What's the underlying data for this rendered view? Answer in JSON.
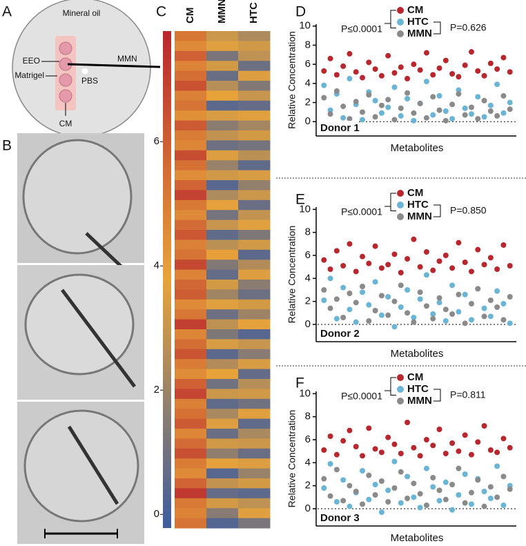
{
  "panel_labels": [
    "A",
    "B",
    "C",
    "D",
    "E",
    "F"
  ],
  "diagram": {
    "title": "Mineral oil",
    "labels": [
      "EEO",
      "Matrigel",
      "PBS",
      "CM",
      "MMN"
    ]
  },
  "chart_data": [
    {
      "type": "heatmap",
      "columns": [
        "CM",
        "MMN",
        "HTC"
      ],
      "colormap": [
        "#3d5c9e",
        "#e8a33a",
        "#b8272e"
      ],
      "ylim": [
        -0.22,
        7.78
      ],
      "yticks": [
        0,
        2,
        4,
        6
      ],
      "values": [
        [
          5.2,
          3.1,
          2.4
        ],
        [
          4.6,
          3.6,
          3.2
        ],
        [
          5.9,
          1.2,
          2.8
        ],
        [
          4.8,
          3.3,
          0.9
        ],
        [
          5.5,
          0.8,
          3.5
        ],
        [
          6.4,
          2.6,
          1.4
        ],
        [
          4.9,
          3.8,
          3.0
        ],
        [
          5.3,
          0.5,
          0.7
        ],
        [
          4.4,
          3.4,
          3.6
        ],
        [
          6.1,
          1.6,
          2.2
        ],
        [
          5.0,
          2.9,
          3.3
        ],
        [
          4.7,
          0.9,
          1.1
        ],
        [
          6.6,
          3.5,
          2.7
        ],
        [
          5.4,
          1.9,
          0.6
        ],
        [
          4.5,
          3.2,
          3.4
        ],
        [
          5.8,
          0.4,
          1.8
        ],
        [
          6.9,
          2.4,
          3.1
        ],
        [
          5.1,
          3.7,
          0.8
        ],
        [
          4.6,
          1.1,
          2.9
        ],
        [
          5.6,
          3.0,
          3.6
        ],
        [
          6.2,
          0.6,
          1.3
        ],
        [
          4.9,
          2.7,
          3.2
        ],
        [
          5.3,
          3.9,
          0.5
        ],
        [
          6.7,
          1.4,
          2.5
        ],
        [
          4.8,
          0.7,
          3.5
        ],
        [
          5.7,
          3.3,
          1.6
        ],
        [
          6.0,
          2.1,
          0.9
        ],
        [
          4.6,
          3.6,
          3.3
        ],
        [
          5.2,
          0.9,
          2.0
        ],
        [
          7.0,
          2.8,
          3.7
        ],
        [
          4.7,
          1.3,
          0.4
        ],
        [
          5.5,
          3.4,
          3.0
        ],
        [
          6.3,
          0.5,
          1.5
        ],
        [
          5.0,
          2.5,
          3.4
        ],
        [
          4.5,
          3.8,
          0.7
        ],
        [
          5.9,
          1.0,
          2.6
        ],
        [
          6.8,
          3.1,
          3.2
        ],
        [
          4.9,
          0.6,
          1.0
        ],
        [
          5.4,
          2.3,
          3.6
        ],
        [
          6.1,
          3.5,
          0.6
        ],
        [
          4.7,
          0.8,
          2.3
        ],
        [
          5.6,
          3.2,
          3.1
        ],
        [
          6.5,
          1.7,
          0.8
        ],
        [
          5.0,
          3.7,
          3.5
        ],
        [
          4.6,
          0.4,
          1.9
        ],
        [
          5.8,
          2.9,
          3.3
        ],
        [
          7.2,
          0.7,
          0.5
        ],
        [
          5.1,
          3.3,
          2.8
        ],
        [
          4.8,
          1.5,
          3.6
        ],
        [
          5.3,
          0.3,
          1.2
        ]
      ]
    },
    {
      "type": "scatter",
      "label": "Donor 1",
      "xlabel": "Metabolites",
      "ylabel": "Relative Concentration",
      "annotations": [
        "P≤0.0001",
        "P=0.626"
      ],
      "ylim": [
        -1.5,
        10.2
      ],
      "yticks": [
        0,
        2,
        4,
        6,
        8,
        10
      ],
      "xlim": [
        0,
        31
      ],
      "x": [
        1,
        2,
        3,
        4,
        5,
        6,
        7,
        8,
        9,
        10,
        11,
        12,
        13,
        14,
        15,
        16,
        17,
        18,
        19,
        20,
        21,
        22,
        23,
        24,
        25,
        26,
        27,
        28,
        29,
        30
      ],
      "series": [
        {
          "name": "CM",
          "color": "#b8272e",
          "values": [
            5.3,
            6.6,
            4.9,
            5.8,
            7.1,
            5.2,
            4.6,
            6.2,
            5.5,
            4.8,
            6.9,
            5.1,
            5.7,
            4.5,
            6.0,
            5.4,
            7.2,
            4.9,
            5.6,
            6.4,
            5.0,
            4.7,
            5.9,
            7.3,
            5.3,
            4.8,
            6.1,
            5.5,
            6.7,
            5.2
          ]
        },
        {
          "name": "HTC",
          "color": "#6ab4d6",
          "values": [
            3.8,
            1.2,
            2.9,
            0.4,
            4.5,
            1.8,
            0.2,
            3.1,
            2.2,
            0.9,
            1.5,
            3.6,
            0.6,
            2.4,
            0.1,
            1.9,
            4.2,
            0.7,
            2.7,
            1.1,
            0.3,
            3.3,
            1.4,
            0.8,
            2.6,
            0.5,
            1.7,
            3.9,
            0.9,
            2.0
          ]
        },
        {
          "name": "MMN",
          "color": "#8a8a8a",
          "values": [
            2.5,
            0.8,
            3.2,
            1.6,
            0.3,
            2.1,
            1.0,
            2.8,
            0.5,
            1.7,
            2.3,
            0.2,
            1.4,
            3.0,
            0.9,
            1.9,
            0.4,
            2.6,
            1.2,
            0.1,
            1.8,
            2.9,
            0.7,
            1.5,
            0.3,
            2.2,
            1.1,
            0.6,
            2.7,
            1.3
          ]
        }
      ]
    },
    {
      "type": "scatter",
      "label": "Donor 2",
      "xlabel": "Metabolites",
      "ylabel": "Relative Concentration",
      "annotations": [
        "P≤0.0001",
        "P=0.850"
      ],
      "ylim": [
        -1.5,
        10.2
      ],
      "yticks": [
        0,
        2,
        4,
        6,
        8,
        10
      ],
      "xlim": [
        0,
        31
      ],
      "x": [
        1,
        2,
        3,
        4,
        5,
        6,
        7,
        8,
        9,
        10,
        11,
        12,
        13,
        14,
        15,
        16,
        17,
        18,
        19,
        20,
        21,
        22,
        23,
        24,
        25,
        26,
        27,
        28,
        29,
        30
      ],
      "series": [
        {
          "name": "CM",
          "color": "#b8272e",
          "values": [
            5.6,
            4.8,
            6.4,
            5.1,
            7.0,
            4.6,
            5.9,
            5.3,
            6.8,
            4.9,
            5.2,
            6.1,
            4.5,
            5.7,
            7.4,
            5.0,
            6.3,
            4.7,
            5.5,
            6.0,
            4.9,
            7.1,
            5.4,
            4.6,
            6.5,
            5.2,
            5.8,
            4.8,
            6.9,
            5.1
          ]
        },
        {
          "name": "HTC",
          "color": "#6ab4d6",
          "values": [
            2.1,
            4.0,
            0.5,
            3.2,
            1.3,
            0.2,
            2.8,
            1.7,
            3.7,
            0.8,
            2.4,
            -0.2,
            1.5,
            3.0,
            0.6,
            2.2,
            4.3,
            0.9,
            1.9,
            0.3,
            3.4,
            1.1,
            2.6,
            0.4,
            3.1,
            1.4,
            0.7,
            2.9,
            1.8,
            0.1
          ]
        },
        {
          "name": "MMN",
          "color": "#8a8a8a",
          "values": [
            3.0,
            1.4,
            2.2,
            0.6,
            2.7,
            1.9,
            3.3,
            0.3,
            1.2,
            2.5,
            0.8,
            2.0,
            3.4,
            1.0,
            0.2,
            2.8,
            1.6,
            0.5,
            2.3,
            1.3,
            0.9,
            2.6,
            0.1,
            1.8,
            3.1,
            0.7,
            2.1,
            1.5,
            0.4,
            2.4
          ]
        }
      ]
    },
    {
      "type": "scatter",
      "label": "Donor 3",
      "xlabel": "Metabolites",
      "ylabel": "Relative Concentration",
      "annotations": [
        "P≤0.0001",
        "P=0.811"
      ],
      "ylim": [
        -1.5,
        10.2
      ],
      "yticks": [
        0,
        2,
        4,
        6,
        8,
        10
      ],
      "xlim": [
        0,
        31
      ],
      "x": [
        1,
        2,
        3,
        4,
        5,
        6,
        7,
        8,
        9,
        10,
        11,
        12,
        13,
        14,
        15,
        16,
        17,
        18,
        19,
        20,
        21,
        22,
        23,
        24,
        25,
        26,
        27,
        28,
        29,
        30
      ],
      "series": [
        {
          "name": "CM",
          "color": "#b8272e",
          "values": [
            5.1,
            6.3,
            4.7,
            5.9,
            6.8,
            5.4,
            4.6,
            7.0,
            5.2,
            4.9,
            6.2,
            5.6,
            4.8,
            7.5,
            5.3,
            4.6,
            6.0,
            5.5,
            6.9,
            4.8,
            5.7,
            5.0,
            6.4,
            4.7,
            5.8,
            7.2,
            5.1,
            4.9,
            6.1,
            5.3
          ]
        },
        {
          "name": "HTC",
          "color": "#6ab4d6",
          "values": [
            1.8,
            3.9,
            0.6,
            2.5,
            0.2,
            1.4,
            3.3,
            0.8,
            2.1,
            -0.3,
            1.6,
            4.1,
            0.5,
            2.8,
            1.0,
            0.1,
            3.5,
            1.9,
            0.7,
            2.3,
            -0.1,
            1.2,
            3.0,
            0.4,
            2.6,
            1.5,
            0.9,
            3.7,
            0.3,
            2.0
          ]
        },
        {
          "name": "MMN",
          "color": "#8a8a8a",
          "values": [
            2.6,
            1.1,
            3.4,
            0.7,
            2.0,
            1.5,
            0.4,
            2.9,
            1.2,
            2.4,
            0.6,
            1.8,
            3.2,
            0.9,
            2.2,
            1.3,
            0.3,
            2.7,
            1.6,
            0.8,
            2.1,
            3.5,
            0.5,
            1.4,
            2.5,
            0.2,
            1.9,
            1.0,
            2.8,
            1.7
          ]
        }
      ]
    }
  ]
}
